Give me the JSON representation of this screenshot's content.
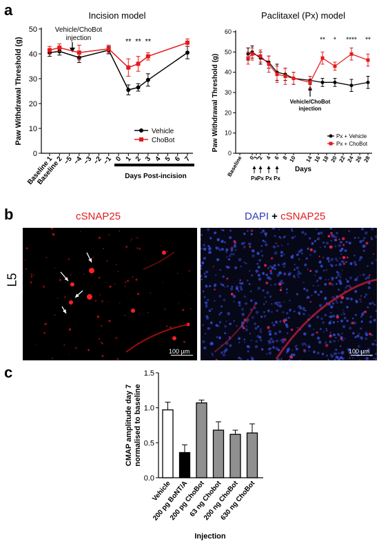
{
  "panels": {
    "a": "a",
    "b": "b",
    "c": "c"
  },
  "chart_data": [
    {
      "type": "line",
      "title": "Incision model",
      "ylabel": "Paw Withdrawal Threshold (g)",
      "xlabel": "Days Post-incision",
      "ylim": [
        0,
        50
      ],
      "yticks": [
        0,
        10,
        20,
        30,
        40,
        50
      ],
      "categories": [
        "Baseline 1",
        "Baseline 2",
        "−5",
        "−4",
        "−3",
        "−2",
        "−1",
        "0",
        "1",
        "2",
        "3",
        "4",
        "5",
        "6",
        "7"
      ],
      "annotation": "Vehicle/ChoBot injection",
      "legend_position": "bottom-right",
      "series": [
        {
          "name": "Vehicle",
          "color": "#000000",
          "points": [
            [
              0,
              40.5,
              1.5
            ],
            [
              1,
              41,
              1.5
            ],
            [
              3,
              38.5,
              2
            ],
            [
              6,
              41.5,
              1.5
            ],
            [
              8,
              25.5,
              2
            ],
            [
              9,
              26.5,
              1.5
            ],
            [
              10,
              29.5,
              2.5
            ],
            [
              14,
              40.5,
              2.5
            ]
          ]
        },
        {
          "name": "ChoBot",
          "color": "#e41a1c",
          "points": [
            [
              0,
              41.5,
              1.5
            ],
            [
              1,
              42.5,
              1.5
            ],
            [
              3,
              40.5,
              3
            ],
            [
              6,
              42,
              1.5
            ],
            [
              8,
              34.5,
              3.5
            ],
            [
              9,
              36,
              3
            ],
            [
              10,
              39,
              1.5
            ],
            [
              14,
              44.5,
              1.5
            ]
          ]
        }
      ],
      "significance": [
        {
          "x": 8,
          "label": "**"
        },
        {
          "x": 9,
          "label": "**"
        },
        {
          "x": 10,
          "label": "**"
        }
      ]
    },
    {
      "type": "line",
      "title": "Paclitaxel (Px) model",
      "ylabel": "Paw Withdrawal Threshold (g)",
      "xlabel": "Days",
      "ylim": [
        0,
        60
      ],
      "yticks": [
        0,
        10,
        20,
        30,
        40,
        50,
        60
      ],
      "xticks": [
        "Baseline",
        "0",
        "1",
        "2",
        "4",
        "6",
        "8",
        "10",
        "14",
        "16",
        "18",
        "20",
        "22",
        "24",
        "26",
        "28"
      ],
      "px_labels": [
        "Px",
        "Px",
        "Px",
        "Px"
      ],
      "annotation": "Vehicle/ChoBot injection",
      "legend_position": "bottom-right",
      "series": [
        {
          "name": "Px + Vehicle",
          "color": "#000000",
          "points": [
            [
              -1,
              49,
              3
            ],
            [
              0,
              50,
              3
            ],
            [
              2,
              47,
              3
            ],
            [
              4,
              45,
              3
            ],
            [
              6,
              40,
              4
            ],
            [
              8,
              39,
              3
            ],
            [
              10,
              37,
              3
            ],
            [
              14,
              36,
              2
            ],
            [
              17,
              35,
              2
            ],
            [
              20,
              35,
              2
            ],
            [
              24,
              33.5,
              3
            ],
            [
              28,
              35,
              3
            ]
          ]
        },
        {
          "name": "Px + ChoBot",
          "color": "#e41a1c",
          "points": [
            [
              -1,
              47,
              3
            ],
            [
              0,
              49,
              3
            ],
            [
              2,
              48,
              3
            ],
            [
              4,
              44,
              4
            ],
            [
              6,
              39,
              4
            ],
            [
              8,
              38,
              4
            ],
            [
              10,
              37,
              3
            ],
            [
              14,
              35,
              3
            ],
            [
              17,
              47,
              3
            ],
            [
              20,
              43,
              2
            ],
            [
              24,
              49,
              3
            ],
            [
              28,
              46,
              3
            ]
          ]
        }
      ],
      "significance": [
        {
          "x": 17,
          "label": "**"
        },
        {
          "x": 20,
          "label": "*"
        },
        {
          "x": 24,
          "label": "****"
        },
        {
          "x": 28,
          "label": "**"
        }
      ]
    },
    {
      "type": "bar",
      "ylabel": "CMAP amplitude day 7 normalised to baseline",
      "xlabel": "Injection",
      "ylim": [
        0,
        1.5
      ],
      "yticks": [
        "0.0",
        "0.5",
        "1.0",
        "1.5"
      ],
      "categories": [
        "Vehicle",
        "200 pg BoNT/A",
        "200 pg ChoBot",
        "63 ng Chobot",
        "200 ng ChoBot",
        "630 ng ChoBot"
      ],
      "values": [
        0.97,
        0.36,
        1.07,
        0.68,
        0.62,
        0.64
      ],
      "errors": [
        0.11,
        0.11,
        0.04,
        0.12,
        0.06,
        0.13
      ],
      "colors": [
        "#ffffff",
        "#000000",
        "#909090",
        "#909090",
        "#909090",
        "#909090"
      ]
    }
  ],
  "micrographs": {
    "row_label": "L5",
    "left": {
      "title": "cSNAP25",
      "scale": "100 µm"
    },
    "right": {
      "title_part1": "DAPI",
      "title_plus": " + ",
      "title_part2": "cSNAP25",
      "scale": "100 µm"
    }
  },
  "colors": {
    "red": "#e41a1c",
    "blue": "#2d3ab8",
    "cell_red": "#ff2020"
  }
}
